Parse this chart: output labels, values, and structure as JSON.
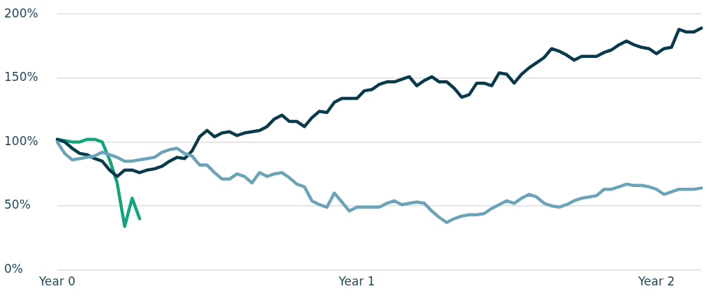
{
  "chart_data": {
    "type": "line",
    "categories": [
      "Year 0",
      null,
      null,
      null,
      null,
      null,
      null,
      null,
      null,
      null,
      null,
      null,
      null,
      null,
      null,
      null,
      null,
      null,
      null,
      null,
      null,
      null,
      null,
      null,
      null,
      null,
      null,
      null,
      null,
      null,
      null,
      null,
      null,
      null,
      null,
      null,
      null,
      null,
      null,
      null,
      "Year 1",
      null,
      null,
      null,
      null,
      null,
      null,
      null,
      null,
      null,
      null,
      null,
      null,
      null,
      null,
      null,
      null,
      null,
      null,
      null,
      null,
      null,
      null,
      null,
      null,
      null,
      null,
      null,
      null,
      null,
      null,
      null,
      null,
      null,
      null,
      null,
      null,
      null,
      null,
      null,
      "Year 2",
      null,
      null,
      null,
      null,
      null,
      null
    ],
    "ylim": [
      0,
      200
    ],
    "yticks": [
      {
        "value": 0,
        "label": "0%"
      },
      {
        "value": 50,
        "label": "50%"
      },
      {
        "value": 100,
        "label": "100%"
      },
      {
        "value": 150,
        "label": "150%"
      },
      {
        "value": 200,
        "label": "200%"
      }
    ],
    "grid": "y",
    "legend": false,
    "marker": "none",
    "line_style": "solid",
    "series": [
      {
        "color": "#6ba3b8",
        "values": [
          100,
          91,
          86,
          87,
          88,
          89,
          92,
          90,
          88,
          85,
          85,
          86,
          87,
          88,
          92,
          94,
          95,
          91,
          89,
          82,
          82,
          76,
          71,
          71,
          75,
          73,
          68,
          76,
          73,
          75,
          76,
          72,
          67,
          65,
          54,
          51,
          49,
          60,
          53,
          46,
          49,
          49,
          49,
          49,
          52,
          54,
          51,
          52,
          53,
          52,
          46,
          41,
          37,
          40,
          42,
          43,
          43,
          44,
          48,
          51,
          54,
          52,
          56,
          59,
          57,
          52,
          50,
          49,
          51,
          54,
          56,
          57,
          58,
          63,
          63,
          65,
          67,
          66,
          66,
          65,
          63,
          59,
          61,
          63,
          63,
          63,
          64
        ]
      },
      {
        "color": "#073b4c",
        "values": [
          102,
          100,
          95,
          91,
          90,
          87,
          85,
          78,
          73,
          78,
          78,
          76,
          78,
          79,
          81,
          85,
          88,
          87,
          93,
          104,
          109,
          104,
          107,
          108,
          105,
          107,
          108,
          109,
          112,
          118,
          121,
          116,
          116,
          112,
          119,
          124,
          123,
          131,
          134,
          134,
          134,
          140,
          141,
          145,
          147,
          147,
          149,
          151,
          144,
          148,
          151,
          147,
          147,
          142,
          135,
          137,
          146,
          146,
          144,
          154,
          153,
          146,
          153,
          158,
          162,
          166,
          173,
          171,
          168,
          164,
          167,
          167,
          167,
          170,
          172,
          176,
          179,
          176,
          174,
          173,
          169,
          173,
          174,
          188,
          186,
          186,
          189
        ]
      },
      {
        "color": "#12a57c",
        "values": [
          102,
          101,
          100,
          100,
          102,
          102,
          100,
          86,
          68,
          34,
          56,
          40,
          null,
          null,
          null,
          null,
          null,
          null,
          null,
          null,
          null,
          null,
          null,
          null,
          null,
          null,
          null,
          null,
          null,
          null,
          null,
          null,
          null,
          null,
          null,
          null,
          null,
          null,
          null,
          null,
          null,
          null,
          null,
          null,
          null,
          null,
          null,
          null,
          null,
          null,
          null,
          null,
          null,
          null,
          null,
          null,
          null,
          null,
          null,
          null,
          null,
          null,
          null,
          null,
          null,
          null,
          null,
          null,
          null,
          null,
          null,
          null,
          null,
          null,
          null,
          null,
          null,
          null,
          null,
          null,
          null,
          null,
          null,
          null,
          null,
          null,
          null
        ]
      }
    ]
  }
}
